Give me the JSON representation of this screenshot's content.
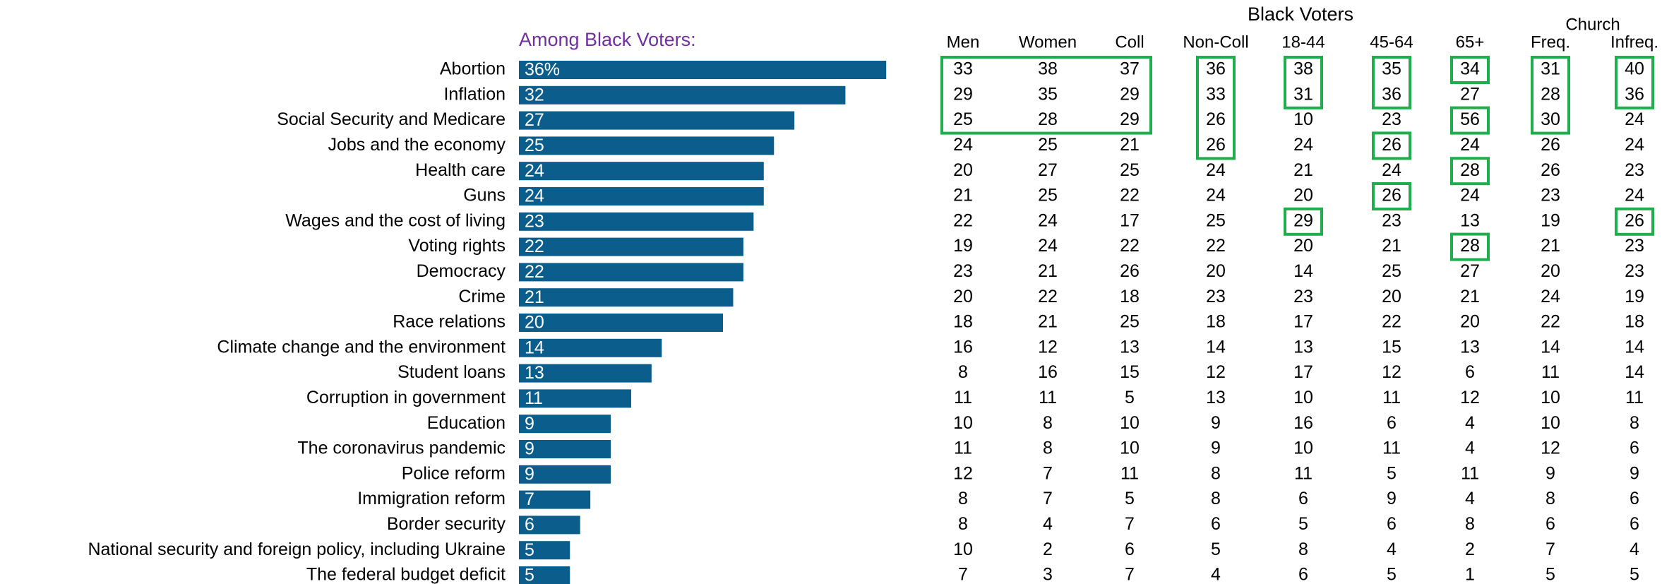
{
  "chart_data": {
    "type": "bar",
    "title": "Among Black Voters:",
    "title_color": "#7030a0",
    "color": "#0b5d8c",
    "categories": [
      "Abortion",
      "Inflation",
      "Social Security and Medicare",
      "Jobs and the economy",
      "Health care",
      "Guns",
      "Wages and the cost of living",
      "Voting rights",
      "Democracy",
      "Crime",
      "Race relations",
      "Climate change and the environment",
      "Student loans",
      "Corruption in government",
      "Education",
      "The coronavirus pandemic",
      "Police reform",
      "Immigration reform",
      "Border security",
      "National security and foreign policy, including Ukraine",
      "The federal budget deficit"
    ],
    "values": [
      36,
      32,
      27,
      25,
      24,
      24,
      23,
      22,
      22,
      21,
      20,
      14,
      13,
      11,
      9,
      9,
      9,
      7,
      6,
      5,
      5
    ],
    "value_labels": [
      "36%",
      "32",
      "27",
      "25",
      "24",
      "24",
      "23",
      "22",
      "22",
      "21",
      "20",
      "14",
      "13",
      "11",
      "9",
      "9",
      "9",
      "7",
      "6",
      "5",
      "5"
    ]
  },
  "table": {
    "title": "Black Voters",
    "group": "Church",
    "highlight_color": "#1fae4b",
    "columns": [
      "Men",
      "Women",
      "Coll",
      "Non-Coll",
      "18-44",
      "45-64",
      "65+",
      "Freq.",
      "Infreq."
    ],
    "rows": [
      [
        33,
        38,
        37,
        36,
        38,
        35,
        34,
        31,
        40
      ],
      [
        29,
        35,
        29,
        33,
        31,
        36,
        27,
        28,
        36
      ],
      [
        25,
        28,
        29,
        26,
        10,
        23,
        56,
        30,
        24
      ],
      [
        24,
        25,
        21,
        26,
        24,
        26,
        24,
        26,
        24
      ],
      [
        20,
        27,
        25,
        24,
        21,
        24,
        28,
        26,
        23
      ],
      [
        21,
        25,
        22,
        24,
        20,
        26,
        24,
        23,
        24
      ],
      [
        22,
        24,
        17,
        25,
        29,
        23,
        13,
        19,
        26
      ],
      [
        19,
        24,
        22,
        22,
        20,
        21,
        28,
        21,
        23
      ],
      [
        23,
        21,
        26,
        20,
        14,
        25,
        27,
        20,
        23
      ],
      [
        20,
        22,
        18,
        23,
        23,
        20,
        21,
        24,
        19
      ],
      [
        18,
        21,
        25,
        18,
        17,
        22,
        20,
        22,
        18
      ],
      [
        16,
        12,
        13,
        14,
        13,
        15,
        13,
        14,
        14
      ],
      [
        8,
        16,
        15,
        12,
        17,
        12,
        6,
        11,
        14
      ],
      [
        11,
        11,
        5,
        13,
        10,
        11,
        12,
        10,
        11
      ],
      [
        10,
        8,
        10,
        9,
        16,
        6,
        4,
        10,
        8
      ],
      [
        11,
        8,
        10,
        9,
        10,
        11,
        4,
        12,
        6
      ],
      [
        12,
        7,
        11,
        8,
        11,
        5,
        11,
        9,
        9
      ],
      [
        8,
        7,
        5,
        8,
        6,
        9,
        4,
        8,
        6
      ],
      [
        8,
        4,
        7,
        6,
        5,
        6,
        8,
        6,
        6
      ],
      [
        10,
        2,
        6,
        5,
        8,
        4,
        2,
        7,
        4
      ],
      [
        7,
        3,
        7,
        4,
        6,
        5,
        1,
        5,
        5
      ]
    ]
  }
}
